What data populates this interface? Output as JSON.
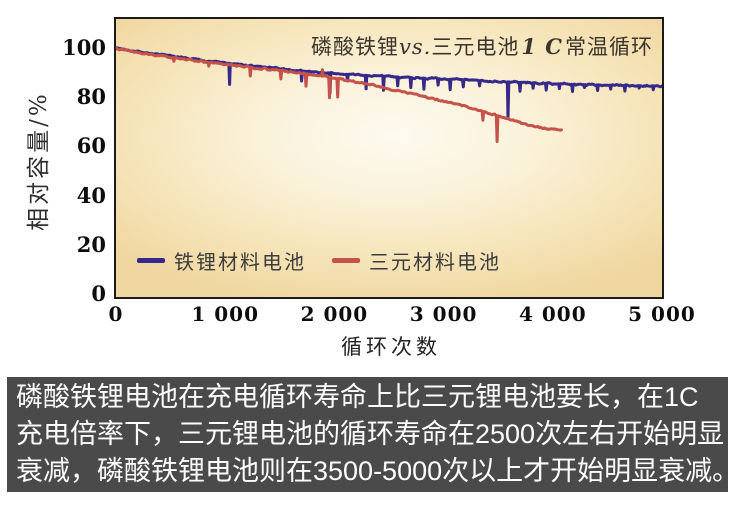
{
  "chart_data": {
    "type": "line",
    "title": "磷酸铁锂vs.三元电池1 C常温循环",
    "title_parts": {
      "pre": "磷酸铁锂",
      "vs": "vs.",
      "mid": "三元电池",
      "c": "1 C",
      "post": "常温循环"
    },
    "xlabel": "循环次数",
    "ylabel": "相对容量/%",
    "xlim": [
      0,
      5000
    ],
    "ylim": [
      0,
      100
    ],
    "grid": false,
    "legend_position": "inside-bottom-left",
    "x_ticks": {
      "values": [
        0,
        1000,
        2000,
        3000,
        4000,
        5000
      ],
      "labels": [
        "0",
        "1 000",
        "2 000",
        "3 000",
        "4 000",
        "5 000"
      ]
    },
    "y_ticks": {
      "values": [
        100,
        80,
        60,
        40,
        20,
        0
      ],
      "labels": [
        "100",
        "80",
        "60",
        "40",
        "20",
        "0"
      ]
    },
    "series": [
      {
        "name": "铁锂材料电池",
        "color": "#35298a",
        "seed": 7,
        "anchors": [
          [
            0,
            100
          ],
          [
            200,
            98.6
          ],
          [
            400,
            97.3
          ],
          [
            600,
            96.1
          ],
          [
            800,
            95.0
          ],
          [
            1000,
            93.9
          ],
          [
            1200,
            92.9
          ],
          [
            1400,
            92.0
          ],
          [
            1600,
            91.1
          ],
          [
            1800,
            90.3
          ],
          [
            2000,
            89.6
          ],
          [
            2200,
            89.1
          ],
          [
            2400,
            88.6
          ],
          [
            2600,
            88.2
          ],
          [
            2800,
            87.8
          ],
          [
            3000,
            87.4
          ],
          [
            3200,
            87.0
          ],
          [
            3400,
            86.6
          ],
          [
            3600,
            86.2
          ],
          [
            3800,
            85.8
          ],
          [
            4000,
            85.5
          ],
          [
            4200,
            85.2
          ],
          [
            4400,
            85.0
          ],
          [
            4600,
            84.8
          ],
          [
            4800,
            84.7
          ],
          [
            5000,
            84.6
          ]
        ],
        "spikes": [
          [
            1040,
            85.2
          ],
          [
            1700,
            86.6
          ],
          [
            1960,
            81.6
          ],
          [
            2120,
            86.6
          ],
          [
            2290,
            83.4
          ],
          [
            2450,
            82.8
          ],
          [
            2580,
            84.6
          ],
          [
            2700,
            83.9
          ],
          [
            2820,
            83.3
          ],
          [
            2950,
            84.9
          ],
          [
            3060,
            83.0
          ],
          [
            3180,
            84.2
          ],
          [
            3330,
            84.6
          ],
          [
            3590,
            71.5
          ],
          [
            3700,
            82.4
          ],
          [
            3820,
            83.6
          ],
          [
            3940,
            82.9
          ],
          [
            4060,
            83.5
          ],
          [
            4180,
            82.3
          ],
          [
            4290,
            83.9
          ],
          [
            4410,
            82.7
          ],
          [
            4530,
            83.3
          ],
          [
            4660,
            82.5
          ],
          [
            4790,
            83.7
          ],
          [
            4920,
            83.0
          ]
        ]
      },
      {
        "name": "三元材料电池",
        "color": "#c5534a",
        "seed": 13,
        "anchors": [
          [
            0,
            100
          ],
          [
            200,
            98.4
          ],
          [
            400,
            96.9
          ],
          [
            600,
            95.6
          ],
          [
            800,
            94.4
          ],
          [
            1000,
            93.3
          ],
          [
            1200,
            92.3
          ],
          [
            1400,
            91.3
          ],
          [
            1600,
            90.3
          ],
          [
            1800,
            89.2
          ],
          [
            2000,
            87.8
          ],
          [
            2200,
            86.2
          ],
          [
            2400,
            84.4
          ],
          [
            2600,
            82.5
          ],
          [
            2800,
            80.5
          ],
          [
            3000,
            78.4
          ],
          [
            3200,
            76.2
          ],
          [
            3400,
            73.8
          ],
          [
            3600,
            71.0
          ],
          [
            3800,
            68.3
          ],
          [
            3950,
            67.0
          ],
          [
            4080,
            66.5
          ]
        ],
        "spikes": [
          [
            530,
            94.6
          ],
          [
            850,
            92.6
          ],
          [
            1230,
            88.6
          ],
          [
            1510,
            87.4
          ],
          [
            1740,
            84.5
          ],
          [
            1890,
            91.2
          ],
          [
            1955,
            79.8
          ],
          [
            2030,
            80.1
          ],
          [
            3360,
            70.6
          ],
          [
            3490,
            62.0
          ]
        ]
      }
    ]
  },
  "caption": {
    "background": "#4a4a4a",
    "lines": [
      "磷酸铁锂电池在充电循环寿命上比三元锂电池要长，在1C",
      "充电倍率下，三元锂电池的循环寿命在2500次左右开始明显",
      "衰减，磷酸铁锂电池则在3500-5000次以上才开始明显衰减。"
    ]
  },
  "colors": {
    "plot_border": "#1b1b1b",
    "plot_bg_center": "#fdfaf0",
    "plot_bg_edge": "#f0d7a1",
    "lfp_line": "#35298a",
    "ternary_line": "#c5534a",
    "caption_bg": "#4a4a4a",
    "caption_text": "#fdfdfd"
  }
}
